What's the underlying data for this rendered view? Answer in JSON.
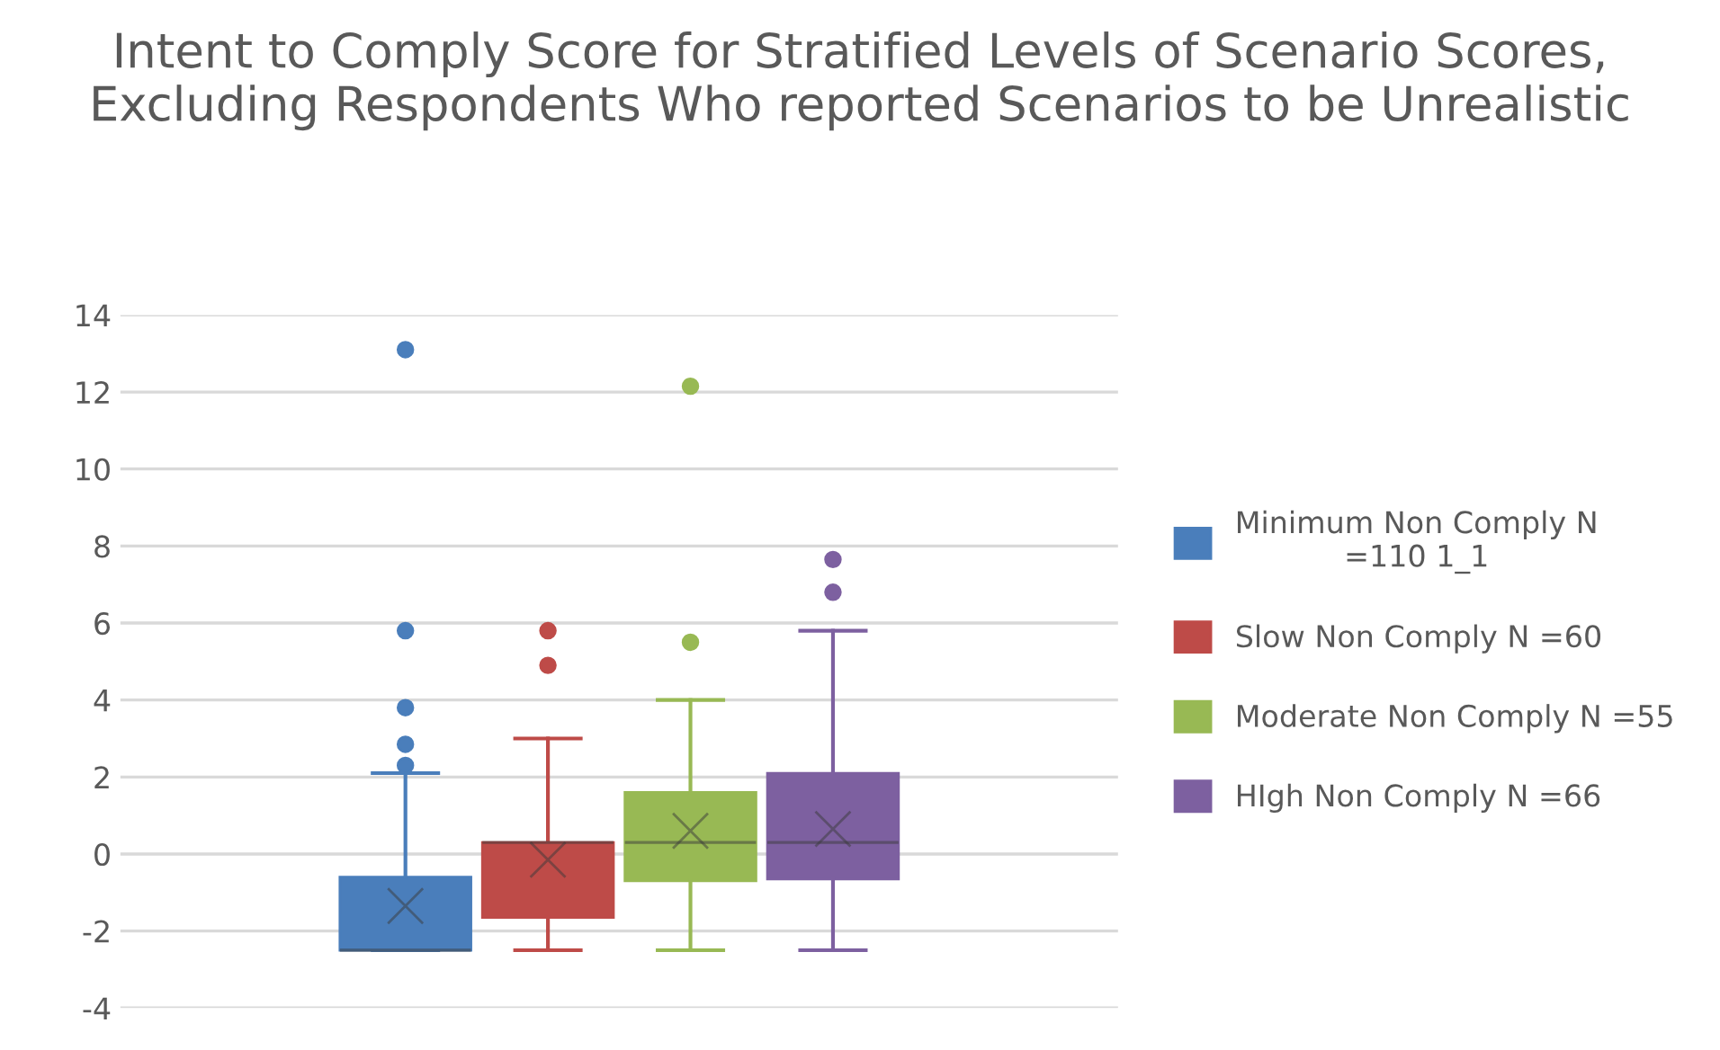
{
  "chart_data": {
    "type": "box",
    "title": "Intent to Comply Score for Stratified Levels of Scenario Scores, Excluding Respondents Who reported Scenarios to be Unrealistic",
    "categories": [
      null
    ],
    "series": [
      {
        "name": "Minimum Non Comply N =110 1_1",
        "color": "#4a7ebb",
        "boxes": [
          {
            "low": -2.5,
            "q1": -2.5,
            "median": -2.5,
            "q3": -0.6,
            "high": 2.1,
            "mean": -1.35,
            "outliers": [
              2.3,
              2.85,
              3.8,
              5.8,
              13.1
            ]
          }
        ]
      },
      {
        "name": "Slow Non Comply N =60",
        "color": "#be4b48",
        "boxes": [
          {
            "low": -2.5,
            "q1": -1.65,
            "median": 0.3,
            "q3": 0.3,
            "high": 3.0,
            "mean": -0.15,
            "outliers": [
              4.9,
              5.8
            ]
          }
        ]
      },
      {
        "name": "Moderate Non Comply N =55",
        "color": "#98b954",
        "boxes": [
          {
            "low": -2.5,
            "q1": -0.7,
            "median": 0.3,
            "q3": 1.6,
            "high": 4.0,
            "mean": 0.6,
            "outliers": [
              5.5,
              12.15
            ]
          }
        ]
      },
      {
        "name": "HIgh Non Comply N =66",
        "color": "#7d60a0",
        "boxes": [
          {
            "low": -2.5,
            "q1": -0.65,
            "median": 0.3,
            "q3": 2.1,
            "high": 5.8,
            "mean": 0.65,
            "outliers": [
              6.8,
              7.65
            ]
          }
        ]
      }
    ],
    "ylim": [
      -4,
      14
    ],
    "yticks": [
      -4,
      -2,
      0,
      2,
      4,
      6,
      8,
      10,
      12,
      14
    ],
    "grid": "y",
    "legend": "right",
    "tick_labels": "y"
  }
}
